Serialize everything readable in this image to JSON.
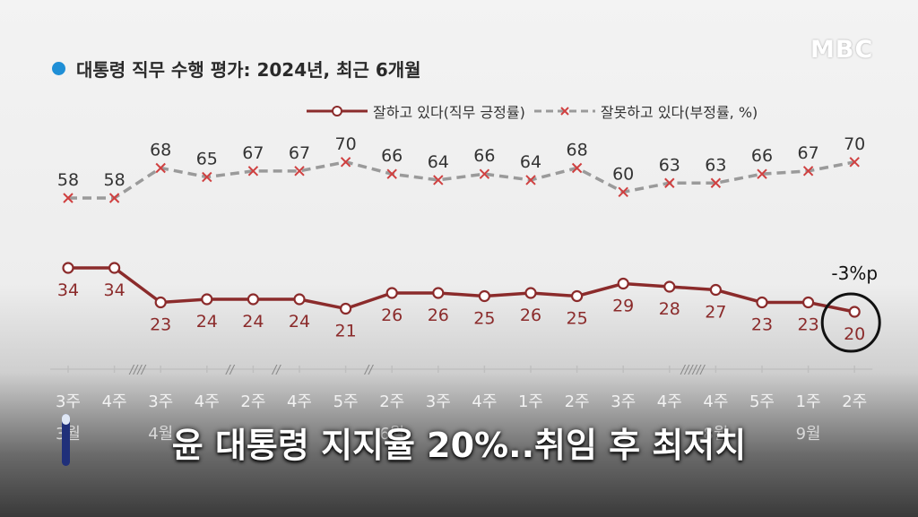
{
  "header": {
    "title": "대통령 직무 수행 평가: 2024년, 최근 6개월",
    "logo": "MBC"
  },
  "caption": "윤 대통령 지지율 20%..취임 후 최저치",
  "player": {
    "progress": 0.2
  },
  "colors": {
    "approve": "#8b2b2b",
    "disapprove": "#9a9a9a",
    "marker_x": "#d04040",
    "title_dot": "#1f8fd6"
  },
  "chart_data": {
    "type": "line",
    "legend_position": "top-right",
    "grid": false,
    "categories": [
      "3주",
      "4주",
      "3주",
      "4주",
      "2주",
      "4주",
      "5주",
      "2주",
      "3주",
      "4주",
      "1주",
      "2주",
      "3주",
      "4주",
      "4주",
      "5주",
      "1주",
      "2주"
    ],
    "month_labels": [
      {
        "index": 0,
        "label": "3월"
      },
      {
        "index": 2,
        "label": "4월"
      },
      {
        "index": 7,
        "label": "6월"
      },
      {
        "index": 14,
        "label": "8월"
      },
      {
        "index": 16,
        "label": "9월"
      }
    ],
    "series": [
      {
        "name": "잘하고 있다(직무 긍정률)",
        "values": [
          34,
          34,
          23,
          24,
          24,
          24,
          21,
          26,
          26,
          25,
          26,
          25,
          29,
          28,
          27,
          23,
          23,
          20
        ]
      },
      {
        "name": "잘못하고 있다(부정률, %)",
        "values": [
          58,
          58,
          68,
          65,
          67,
          67,
          70,
          66,
          64,
          66,
          64,
          68,
          60,
          63,
          63,
          66,
          67,
          70
        ]
      }
    ],
    "annotation": {
      "index": 17,
      "text": "-3%p"
    },
    "axis_breaks": [
      {
        "after_index": 1,
        "mark": "////"
      },
      {
        "after_index": 3,
        "mark": "//"
      },
      {
        "after_index": 4,
        "mark": "//"
      },
      {
        "after_index": 6,
        "mark": "//"
      },
      {
        "after_index": 13,
        "mark": "//////"
      }
    ]
  }
}
